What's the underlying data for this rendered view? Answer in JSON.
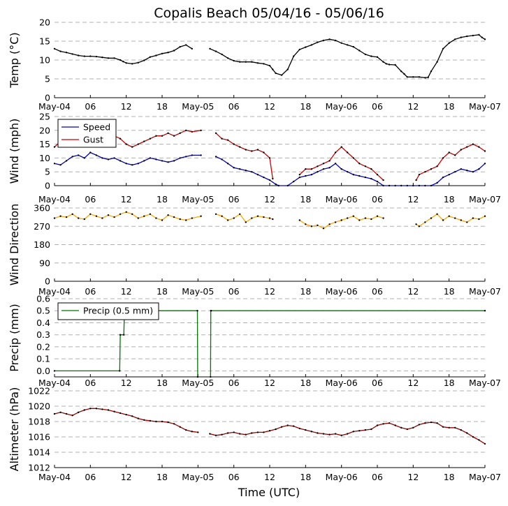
{
  "chart_data": {
    "title": "Copalis Beach 05/04/16 - 05/06/16",
    "xlabel": "Time (UTC)",
    "x_tick_labels": [
      "May-04",
      "06",
      "12",
      "18",
      "May-05",
      "06",
      "12",
      "18",
      "May-06",
      "06",
      "12",
      "18",
      "May-07"
    ],
    "x_range_hours": [
      0,
      72
    ],
    "colors": {
      "temp": "#000000",
      "speed": "#0000cc",
      "gust": "#cc0000",
      "direction": "#ffa500",
      "precip": "#007700",
      "altimeter": "#990000"
    },
    "panels": [
      {
        "id": "temp",
        "type": "line",
        "ylabel": "Temp (°C)",
        "ylim": [
          0,
          20
        ],
        "yticks": [
          "0",
          "5",
          "10",
          "15",
          "20"
        ],
        "series": [
          {
            "key": "temp",
            "x": [
              0,
              1,
              2,
              3,
              4,
              5,
              6,
              7,
              8,
              9,
              10,
              11,
              11.5,
              12,
              13,
              14,
              15,
              16,
              17,
              18,
              19,
              20,
              21,
              22,
              23,
              24.5,
              26,
              27,
              28,
              29,
              30,
              31,
              32,
              33,
              34,
              35,
              36,
              36.5,
              37,
              38,
              39,
              40,
              41,
              42,
              43,
              44,
              45,
              46,
              47,
              48,
              49,
              50,
              51,
              52,
              53,
              54,
              55,
              55.5,
              56,
              57,
              58,
              58.5,
              59,
              60,
              61,
              62,
              62.5,
              63,
              64,
              65,
              66,
              67,
              68,
              69,
              70,
              71,
              71.5,
              72
            ],
            "y": [
              13,
              12.3,
              12,
              11.6,
              11.2,
              11,
              11,
              10.9,
              10.7,
              10.5,
              10.5,
              10,
              9.6,
              9.2,
              9,
              9.3,
              9.9,
              10.8,
              11.2,
              11.7,
              12,
              12.5,
              13.5,
              14,
              13,
              null,
              13,
              12.3,
              11.5,
              10.5,
              9.8,
              9.5,
              9.5,
              9.5,
              9.2,
              9,
              8.5,
              7.5,
              6.5,
              6,
              7.5,
              11,
              12.8,
              13.4,
              14,
              14.7,
              15.2,
              15.5,
              15.2,
              14.5,
              14,
              13.5,
              12.5,
              11.5,
              11,
              10.8,
              9.5,
              9,
              8.8,
              8.7,
              7,
              6.3,
              5.5,
              5.5,
              5.5,
              5.3,
              5.4,
              7,
              9.5,
              13,
              14.5,
              15.5,
              16,
              16.3,
              16.5,
              16.7,
              16,
              15.5
            ]
          }
        ]
      },
      {
        "id": "wind",
        "type": "line",
        "ylabel": "Wind (mph)",
        "ylim": [
          0,
          25
        ],
        "yticks": [
          "0",
          "5",
          "10",
          "15",
          "20",
          "25"
        ],
        "legend": {
          "placement": "upper-left",
          "entries": [
            "Speed",
            "Gust"
          ]
        },
        "series": [
          {
            "key": "speed",
            "name": "Speed",
            "x": [
              0,
              1,
              2,
              3,
              4,
              5,
              6,
              7,
              8,
              9,
              10,
              11,
              12,
              13,
              14,
              15,
              16,
              17,
              18,
              19,
              20,
              21,
              22,
              23,
              24.5,
              26,
              27,
              28,
              29,
              30,
              31,
              32,
              33,
              34,
              35,
              36,
              37,
              37.5,
              39,
              40,
              41,
              42,
              43,
              44,
              45,
              46,
              47,
              48,
              49,
              50,
              51,
              52,
              53,
              54,
              55,
              56,
              57,
              58,
              59,
              60,
              61,
              62,
              63,
              64,
              65,
              66,
              67,
              68,
              69,
              70,
              71,
              72
            ],
            "y": [
              8,
              7.5,
              9,
              10.5,
              11,
              10,
              12,
              11,
              10,
              9.5,
              10,
              9,
              8,
              7.5,
              8,
              9,
              10,
              9.5,
              9,
              8.5,
              9,
              10,
              10.5,
              11,
              11,
              null,
              10.5,
              9.5,
              8,
              6.5,
              6,
              5.5,
              5,
              4,
              3,
              2,
              0.5,
              0,
              0,
              1.5,
              3,
              3.5,
              4,
              5,
              6,
              6.5,
              8,
              6,
              5,
              4,
              3.5,
              3,
              2.5,
              1.5,
              0,
              0,
              0,
              0,
              0,
              0,
              0,
              0,
              0,
              1,
              3,
              4,
              5,
              6,
              5.5,
              5,
              6,
              8
            ]
          },
          {
            "key": "gust",
            "name": "Gust",
            "x": [
              0,
              1,
              2,
              3,
              4,
              5,
              6,
              7,
              8,
              9,
              10,
              11,
              12,
              13,
              14,
              15,
              16,
              17,
              18,
              19,
              20,
              21,
              22,
              23,
              24.5,
              26,
              27,
              28,
              29,
              30,
              31,
              32,
              33,
              34,
              35,
              36,
              36.5,
              40.5,
              41,
              42,
              43,
              44,
              45,
              46,
              47,
              48,
              49,
              50,
              51,
              52,
              53,
              54,
              55,
              55.5,
              60.5,
              61,
              62,
              63,
              64,
              65,
              66,
              67,
              68,
              69,
              70,
              71,
              72
            ],
            "y": [
              14,
              16,
              18,
              17,
              17,
              18,
              19,
              18,
              18,
              19,
              18,
              17,
              15,
              14,
              15,
              16,
              17,
              18,
              18,
              19,
              18,
              19,
              20,
              19.5,
              20,
              null,
              19,
              17,
              16.5,
              15,
              14,
              13,
              12.5,
              13,
              12,
              10,
              2.5,
              null,
              4,
              6,
              6,
              7,
              8,
              9,
              12,
              14,
              12,
              10,
              8,
              7,
              6,
              4,
              2,
              null,
              2,
              4,
              5,
              6,
              7,
              10,
              12,
              11,
              13,
              14,
              15,
              14,
              12.5
            ]
          }
        ]
      },
      {
        "id": "direction",
        "type": "line",
        "ylabel": "Wind Direction",
        "ylim": [
          0,
          360
        ],
        "yticks": [
          "0",
          "90",
          "180",
          "270",
          "360"
        ],
        "series": [
          {
            "key": "direction",
            "x": [
              0,
              1,
              2,
              3,
              4,
              5,
              6,
              7,
              8,
              9,
              10,
              11,
              12,
              13,
              14,
              15,
              16,
              17,
              18,
              19,
              20,
              21,
              22,
              23,
              24.5,
              26,
              27,
              28,
              29,
              30,
              31,
              32,
              33,
              34,
              35,
              36,
              36.5,
              40.5,
              41,
              42,
              43,
              44,
              45,
              46,
              47,
              48,
              49,
              50,
              51,
              52,
              53,
              54,
              55,
              55.5,
              60.5,
              61,
              62,
              63,
              64,
              65,
              66,
              67,
              68,
              69,
              70,
              71,
              72
            ],
            "y": [
              310,
              320,
              315,
              330,
              310,
              305,
              330,
              320,
              310,
              325,
              315,
              330,
              340,
              330,
              310,
              320,
              330,
              310,
              300,
              325,
              315,
              305,
              300,
              310,
              320,
              null,
              330,
              320,
              300,
              310,
              330,
              290,
              310,
              320,
              315,
              310,
              305,
              null,
              300,
              280,
              270,
              275,
              260,
              280,
              290,
              300,
              310,
              320,
              300,
              310,
              305,
              320,
              310,
              null,
              280,
              270,
              290,
              310,
              330,
              300,
              320,
              310,
              300,
              290,
              310,
              305,
              320
            ]
          }
        ]
      },
      {
        "id": "precip",
        "type": "line",
        "ylabel": "Precip (mm)",
        "ylim": [
          -0.05,
          0.6
        ],
        "yticks": [
          "0.0",
          "0.1",
          "0.2",
          "0.3",
          "0.4",
          "0.5",
          "0.6"
        ],
        "legend": {
          "placement": "upper-left",
          "entries": [
            "Precip (0.5 mm)"
          ]
        },
        "series": [
          {
            "key": "precip",
            "name": "Precip (0.5 mm)",
            "x": [
              0,
              10.9,
              11,
              11.6,
              11.7,
              12,
              23.9,
              23.95,
              24,
              26.1,
              26.15,
              26.2,
              72
            ],
            "y": [
              0,
              0,
              0.3,
              0.3,
              0.5,
              0.5,
              0.5,
              -0.05,
              null,
              -0.05,
              0.5,
              0.5,
              0.5
            ]
          }
        ]
      },
      {
        "id": "altimeter",
        "type": "line",
        "ylabel": "Altimeter (hPa)",
        "ylim": [
          1012,
          1022
        ],
        "yticks": [
          "1012",
          "1014",
          "1016",
          "1018",
          "1020",
          "1022"
        ],
        "series": [
          {
            "key": "altimeter",
            "x": [
              0,
              1,
              2,
              3,
              4,
              5,
              6,
              7,
              8,
              9,
              10,
              11,
              12,
              13,
              14,
              15,
              16,
              17,
              18,
              19,
              20,
              21,
              22,
              23,
              24,
              24.5,
              26,
              27,
              28,
              29,
              30,
              31,
              32,
              33,
              34,
              35,
              36,
              37,
              38,
              39,
              40,
              41,
              42,
              43,
              44,
              45,
              46,
              47,
              48,
              49,
              50,
              51,
              52,
              53,
              54,
              55,
              56,
              57,
              58,
              59,
              60,
              61,
              62,
              63,
              64,
              65,
              66,
              67,
              68,
              69,
              70,
              71,
              72
            ],
            "y": [
              1019,
              1019.2,
              1019,
              1018.8,
              1019.2,
              1019.5,
              1019.7,
              1019.7,
              1019.6,
              1019.5,
              1019.3,
              1019.1,
              1018.9,
              1018.7,
              1018.4,
              1018.2,
              1018.1,
              1018,
              1018,
              1017.9,
              1017.7,
              1017.3,
              1016.9,
              1016.7,
              1016.6,
              null,
              1016.4,
              1016.2,
              1016.3,
              1016.5,
              1016.6,
              1016.4,
              1016.3,
              1016.5,
              1016.6,
              1016.6,
              1016.8,
              1017,
              1017.3,
              1017.5,
              1017.4,
              1017.1,
              1016.9,
              1016.7,
              1016.5,
              1016.4,
              1016.3,
              1016.4,
              1016.2,
              1016.4,
              1016.7,
              1016.8,
              1016.9,
              1017,
              1017.5,
              1017.7,
              1017.8,
              1017.5,
              1017.2,
              1017,
              1017.2,
              1017.6,
              1017.8,
              1017.9,
              1017.8,
              1017.3,
              1017.2,
              1017.2,
              1016.9,
              1016.5,
              1016,
              1015.6,
              1015.1
            ]
          }
        ]
      }
    ]
  }
}
